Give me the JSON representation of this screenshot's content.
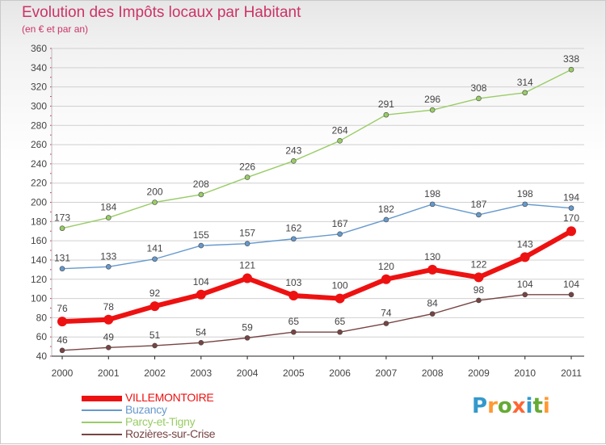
{
  "header": {
    "title": "Evolution des Impôts locaux par Habitant",
    "subtitle": "(en € et par an)"
  },
  "colors": {
    "title": "#cc3366",
    "axis_text": "#444444",
    "grid": "#d0d0d0",
    "axis_tick": "#cc3366"
  },
  "chart_data": {
    "type": "line",
    "title": "Evolution des Impôts locaux par Habitant",
    "subtitle": "(en € et par an)",
    "xlabel": "",
    "ylabel": "",
    "categories": [
      "2000",
      "2001",
      "2002",
      "2003",
      "2004",
      "2005",
      "2006",
      "2007",
      "2008",
      "2009",
      "2010",
      "2011"
    ],
    "ylim": [
      40,
      360
    ],
    "yticks": [
      40,
      60,
      80,
      100,
      120,
      140,
      160,
      180,
      200,
      220,
      240,
      260,
      280,
      300,
      320,
      340,
      360
    ],
    "grid": "horizontal",
    "legend_position": "bottom-left",
    "series": [
      {
        "name": "VILLEMONTOIRE",
        "color": "#ee1111",
        "emphasis": true,
        "values": [
          76,
          78,
          92,
          104,
          121,
          103,
          100,
          120,
          130,
          122,
          143,
          170
        ]
      },
      {
        "name": "Buzancy",
        "color": "#6699cc",
        "emphasis": false,
        "values": [
          131,
          133,
          141,
          155,
          157,
          162,
          167,
          182,
          198,
          187,
          198,
          194
        ]
      },
      {
        "name": "Parcy-et-Tigny",
        "color": "#99cc66",
        "emphasis": false,
        "values": [
          173,
          184,
          200,
          208,
          226,
          243,
          264,
          291,
          296,
          308,
          314,
          338
        ]
      },
      {
        "name": "Rozières-sur-Crise",
        "color": "#774444",
        "emphasis": false,
        "values": [
          46,
          49,
          51,
          54,
          59,
          65,
          65,
          74,
          84,
          98,
          104,
          104
        ]
      }
    ]
  },
  "logo": {
    "letters": [
      {
        "char": "P",
        "color": "#3399cc"
      },
      {
        "char": "r",
        "color": "#ff9933"
      },
      {
        "char": "o",
        "color": "#66aa33"
      },
      {
        "char": "x",
        "color": "#ff6633"
      },
      {
        "char": "i",
        "color": "#3399cc"
      },
      {
        "char": "t",
        "color": "#66aa33"
      },
      {
        "char": "i",
        "color": "#ff9933"
      }
    ]
  }
}
